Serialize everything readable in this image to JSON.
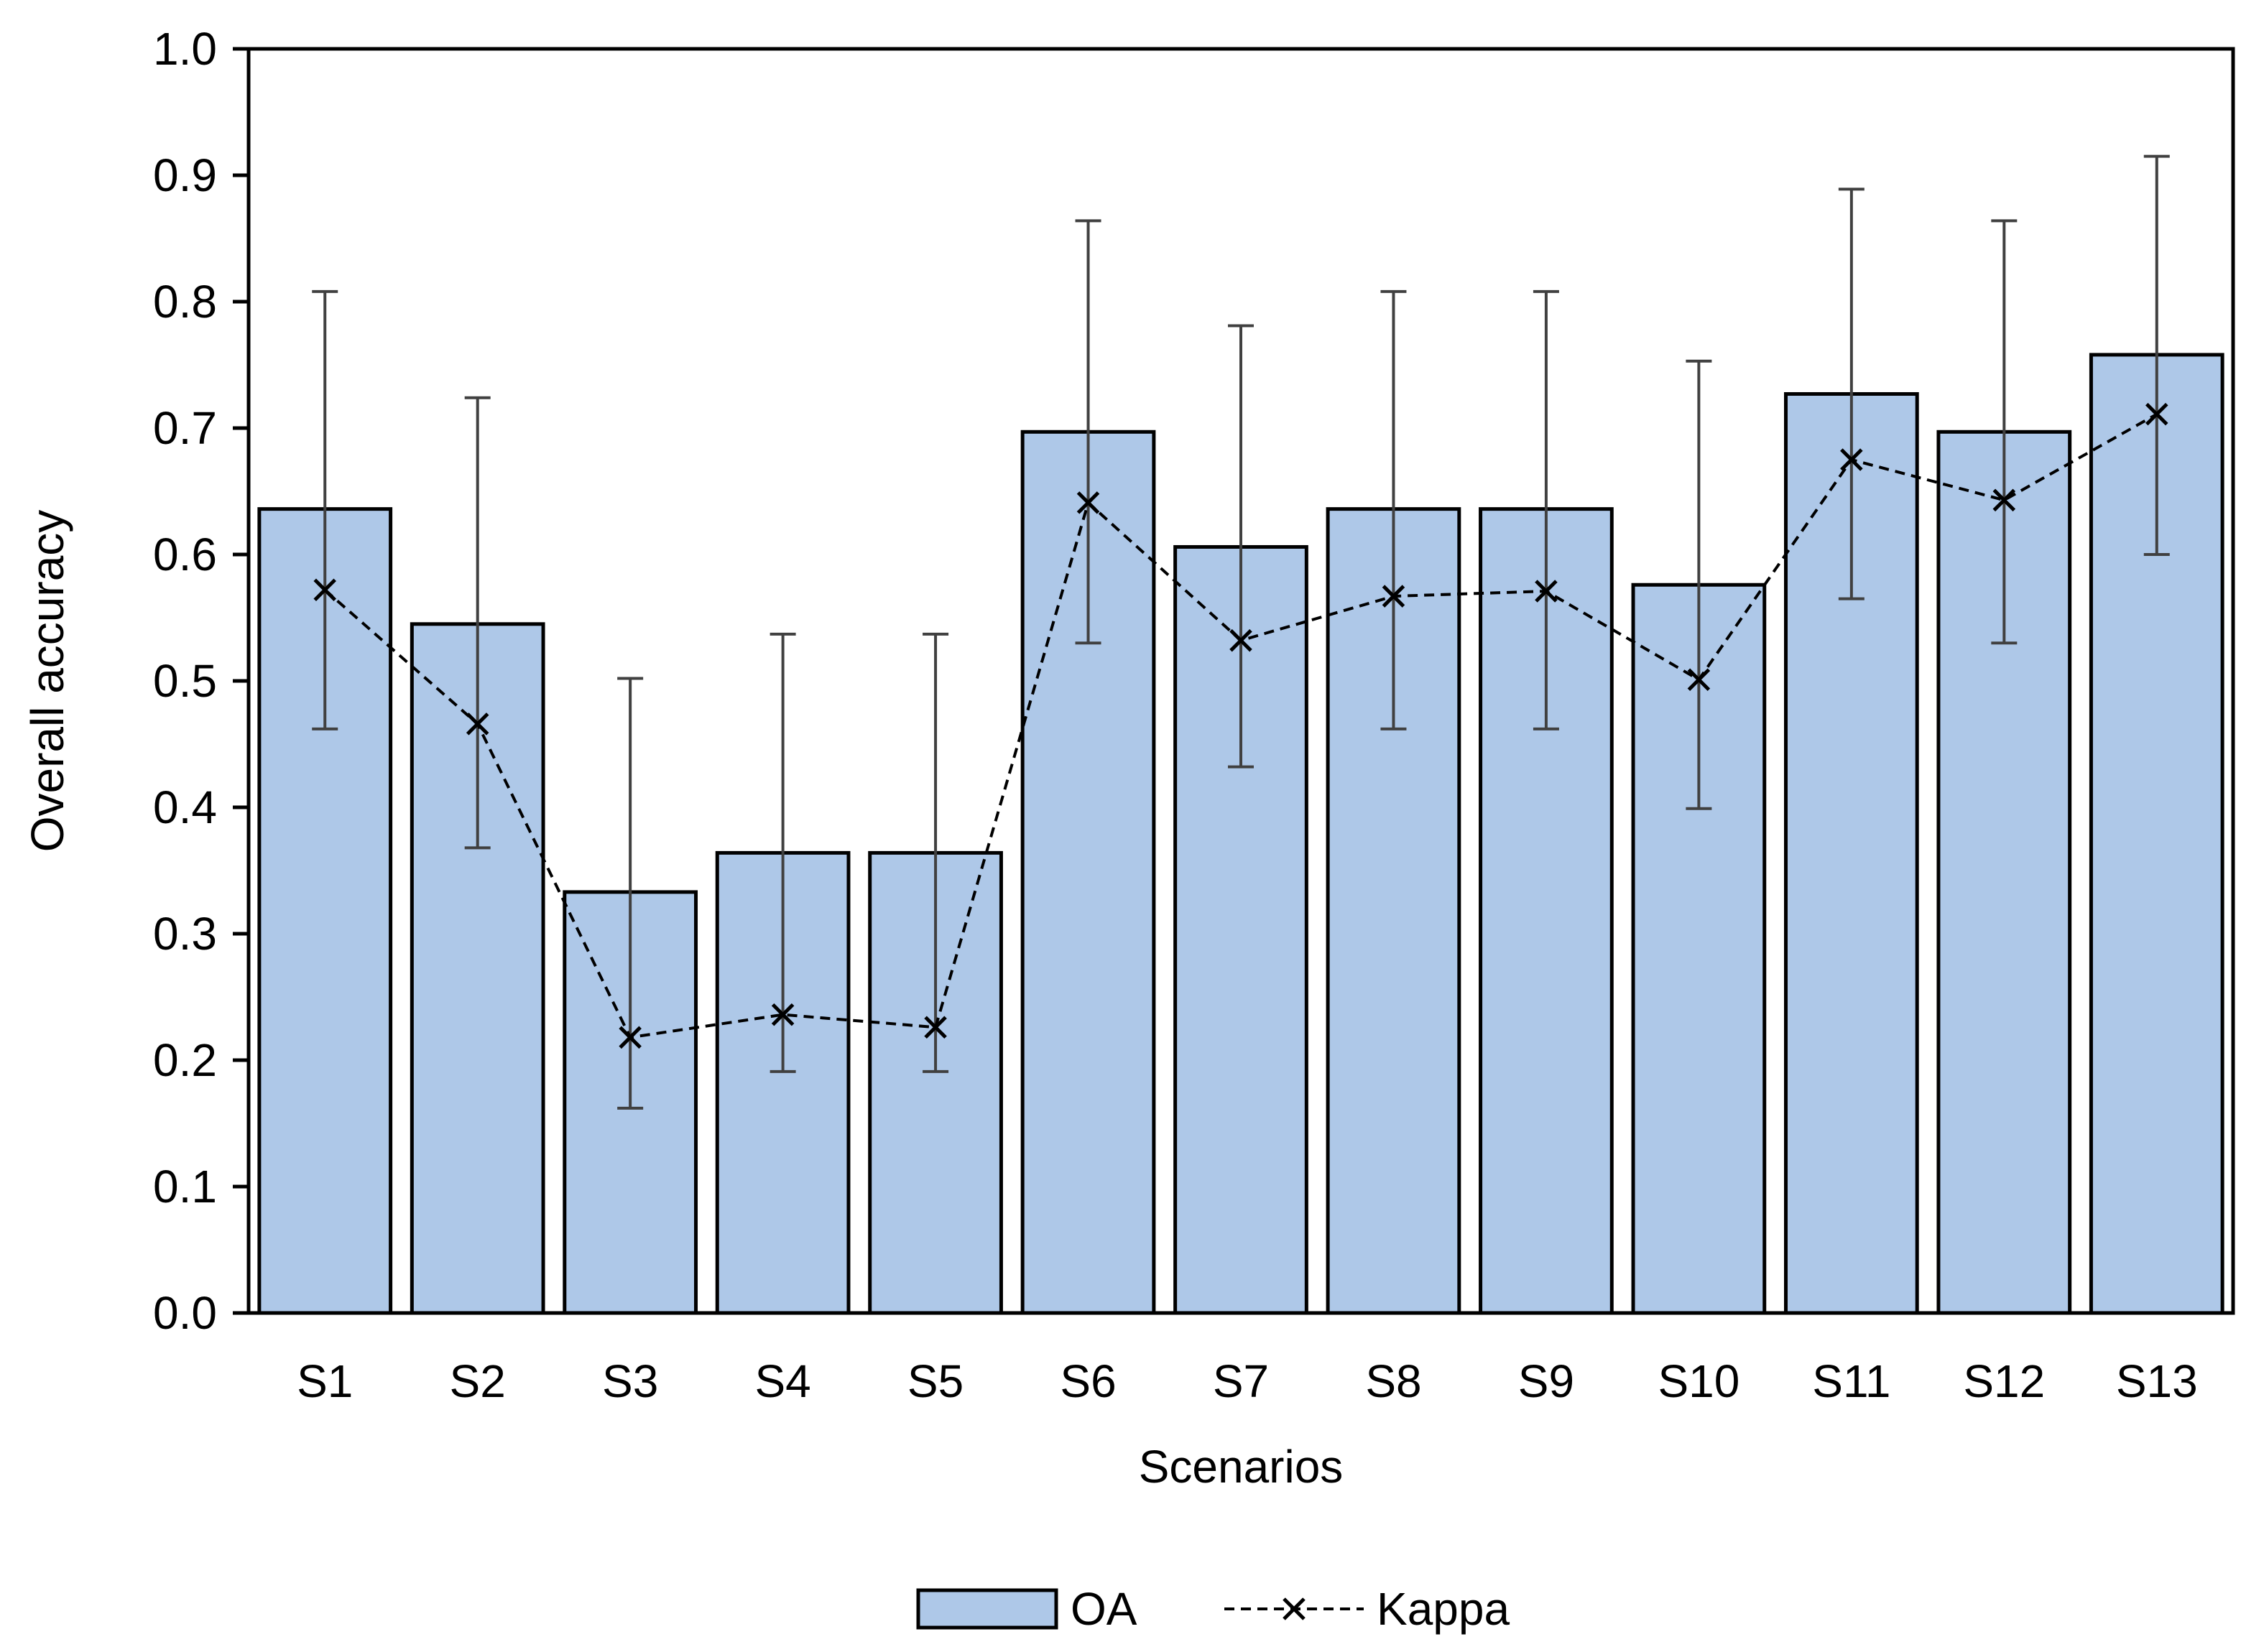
{
  "chart_data": {
    "type": "bar",
    "title": "",
    "xlabel": "Scenarios",
    "ylabel": "Overall accuracy",
    "ylim": [
      0,
      1.0
    ],
    "yticks": [
      "0.0",
      "0.1",
      "0.2",
      "0.3",
      "0.4",
      "0.5",
      "0.6",
      "0.7",
      "0.8",
      "0.9",
      "1.0"
    ],
    "categories": [
      "S1",
      "S2",
      "S3",
      "S4",
      "S5",
      "S6",
      "S7",
      "S8",
      "S9",
      "S10",
      "S11",
      "S12",
      "S13"
    ],
    "series": [
      {
        "name": "OA",
        "kind": "bar",
        "color": "#aec8e8",
        "values": [
          0.636,
          0.545,
          0.333,
          0.364,
          0.364,
          0.697,
          0.606,
          0.636,
          0.636,
          0.576,
          0.727,
          0.697,
          0.758
        ],
        "error_low": [
          0.462,
          0.368,
          0.162,
          0.191,
          0.191,
          0.53,
          0.432,
          0.462,
          0.462,
          0.399,
          0.565,
          0.53,
          0.6
        ],
        "error_high": [
          0.808,
          0.724,
          0.502,
          0.537,
          0.537,
          0.864,
          0.781,
          0.808,
          0.808,
          0.753,
          0.889,
          0.864,
          0.915
        ]
      },
      {
        "name": "Kappa",
        "kind": "line",
        "color": "#000000",
        "values": [
          0.572,
          0.466,
          0.218,
          0.236,
          0.226,
          0.641,
          0.532,
          0.567,
          0.571,
          0.501,
          0.675,
          0.643,
          0.711
        ]
      }
    ],
    "legend": {
      "position": "bottom",
      "entries": [
        "OA",
        "Kappa"
      ]
    }
  }
}
